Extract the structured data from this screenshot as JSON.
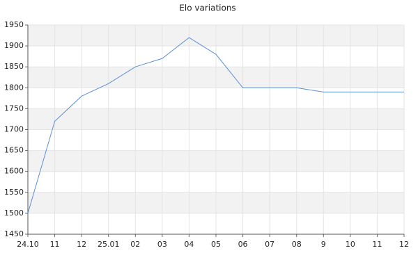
{
  "chart_data": {
    "type": "line",
    "title": "Elo variations",
    "categories": [
      "24.10",
      "11",
      "12",
      "25.01",
      "02",
      "03",
      "04",
      "05",
      "06",
      "07",
      "08",
      "9",
      "10",
      "11",
      "12"
    ],
    "values": [
      1500,
      1720,
      1780,
      1810,
      1850,
      1870,
      1920,
      1880,
      1800,
      1800,
      1800,
      1790,
      1790,
      1790,
      1790
    ],
    "color": "#5b8ed8",
    "ylim": [
      1450,
      1950
    ],
    "yticks": [
      1450,
      1500,
      1550,
      1600,
      1650,
      1700,
      1750,
      1800,
      1850,
      1900,
      1950
    ],
    "grid": true
  }
}
